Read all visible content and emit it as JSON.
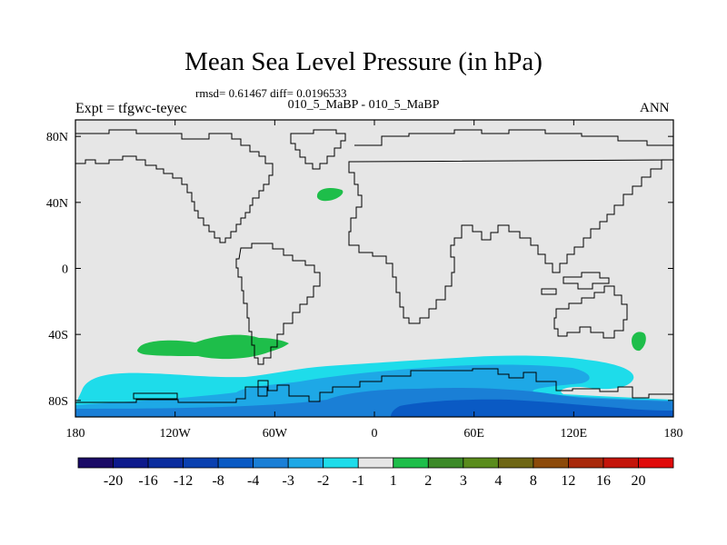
{
  "chart_data": {
    "type": "heatmap",
    "title": "Mean Sea Level Pressure (in hPa)",
    "stats_text": "rmsd= 0.61467 diff= 0.0196533",
    "subtitle": "010_5_MaBP - 010_5_MaBP",
    "left_label": "Expt = tfgwc-teyec",
    "right_label": "ANN",
    "projection": "cylindrical-equidistant",
    "xlim": [
      -180,
      180
    ],
    "ylim": [
      -90,
      90
    ],
    "x_ticks": [
      {
        "value": -180,
        "label": "180"
      },
      {
        "value": -120,
        "label": "120W"
      },
      {
        "value": -60,
        "label": "60W"
      },
      {
        "value": 0,
        "label": "0"
      },
      {
        "value": 60,
        "label": "60E"
      },
      {
        "value": 120,
        "label": "120E"
      },
      {
        "value": 180,
        "label": "180"
      }
    ],
    "y_ticks": [
      {
        "value": 80,
        "label": "80N"
      },
      {
        "value": 40,
        "label": "40N"
      },
      {
        "value": 0,
        "label": "0"
      },
      {
        "value": -40,
        "label": "40S"
      },
      {
        "value": -80,
        "label": "80S"
      }
    ],
    "colorbar": {
      "levels": [
        "-20",
        "-16",
        "-12",
        "-8",
        "-4",
        "-3",
        "-2",
        "-1",
        "1",
        "2",
        "3",
        "4",
        "8",
        "12",
        "16",
        "20"
      ],
      "colors": [
        "#1a0a66",
        "#0d1a8c",
        "#0a2c9e",
        "#0a40b0",
        "#0a5ac4",
        "#1a7fd6",
        "#1ea8e6",
        "#1edcea",
        "#e6e6e6",
        "#1ebe4a",
        "#3c8a28",
        "#5a8c1c",
        "#6e6614",
        "#8c4a0a",
        "#a8280a",
        "#c4140a",
        "#e00a0a"
      ]
    },
    "background_color": "#e6e6e6",
    "anomaly_regions": [
      {
        "name": "north-atlantic-positive",
        "value_range": "1 to 2",
        "color": "#1ebe4a",
        "lon_center": -25,
        "lat_center": 45
      },
      {
        "name": "south-pacific-positive",
        "value_range": "1 to 2",
        "color": "#1ebe4a",
        "lon_center": -70,
        "lat_center": -47
      },
      {
        "name": "new-zealand-positive",
        "value_range": "1 to 2",
        "color": "#1ebe4a",
        "lon_center": 162,
        "lat_center": -43
      },
      {
        "name": "southern-ocean-negative",
        "value_range": "-2 to -1",
        "color": "#1edcea",
        "lon_center": 20,
        "lat_center": -70
      },
      {
        "name": "antarctic-coast-negative",
        "value_range": "-3 to -2",
        "color": "#1ea8e6",
        "lon_center": 60,
        "lat_center": -77
      },
      {
        "name": "antarctic-interior-negative",
        "value_range": "-4 to -3",
        "color": "#1a7fd6",
        "lon_center": 80,
        "lat_center": -82
      }
    ]
  }
}
